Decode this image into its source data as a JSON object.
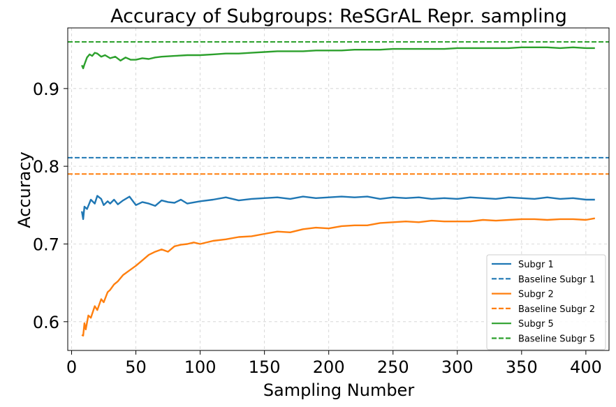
{
  "chart_data": {
    "type": "line",
    "title": "Accuracy of Subgroups: ReSGrAL Repr. sampling",
    "xlabel": "Sampling Number",
    "ylabel": "Accuracy",
    "xlim": [
      -3,
      418
    ],
    "ylim": [
      0.563,
      0.978
    ],
    "xticks": [
      0,
      50,
      100,
      150,
      200,
      250,
      300,
      350,
      400
    ],
    "yticks": [
      0.6,
      0.7,
      0.8,
      0.9
    ],
    "ytick_labels": [
      "0.6",
      "0.7",
      "0.8",
      "0.9"
    ],
    "grid": true,
    "legend_position": "bottom-right",
    "series": [
      {
        "name": "Subgr 1",
        "color": "#1f77b4",
        "style": "solid",
        "x": [
          8,
          9,
          10,
          12,
          15,
          18,
          20,
          23,
          25,
          28,
          30,
          33,
          36,
          40,
          45,
          50,
          55,
          60,
          65,
          70,
          75,
          80,
          85,
          90,
          100,
          110,
          120,
          130,
          140,
          150,
          160,
          170,
          180,
          190,
          200,
          210,
          220,
          230,
          240,
          250,
          260,
          270,
          280,
          290,
          300,
          310,
          320,
          330,
          340,
          350,
          360,
          370,
          380,
          390,
          400,
          407
        ],
        "y": [
          0.742,
          0.732,
          0.748,
          0.745,
          0.757,
          0.752,
          0.762,
          0.758,
          0.75,
          0.755,
          0.752,
          0.757,
          0.751,
          0.756,
          0.761,
          0.75,
          0.754,
          0.752,
          0.749,
          0.756,
          0.754,
          0.753,
          0.757,
          0.752,
          0.755,
          0.757,
          0.76,
          0.756,
          0.758,
          0.759,
          0.76,
          0.758,
          0.761,
          0.759,
          0.76,
          0.761,
          0.76,
          0.761,
          0.758,
          0.76,
          0.759,
          0.76,
          0.758,
          0.759,
          0.758,
          0.76,
          0.759,
          0.758,
          0.76,
          0.759,
          0.758,
          0.76,
          0.758,
          0.759,
          0.757,
          0.757
        ]
      },
      {
        "name": "Baseline Subgr 1",
        "color": "#1f77b4",
        "style": "dashed",
        "value": 0.811
      },
      {
        "name": "Subgr 2",
        "color": "#ff7f0e",
        "style": "solid",
        "x": [
          8,
          9,
          10,
          11,
          13,
          15,
          18,
          20,
          23,
          25,
          28,
          30,
          33,
          36,
          40,
          45,
          50,
          55,
          60,
          65,
          70,
          75,
          80,
          85,
          90,
          95,
          100,
          110,
          120,
          130,
          140,
          150,
          160,
          170,
          180,
          190,
          200,
          210,
          220,
          230,
          240,
          250,
          260,
          270,
          280,
          290,
          300,
          310,
          320,
          330,
          340,
          350,
          360,
          370,
          380,
          390,
          400,
          407
        ],
        "y": [
          0.583,
          0.582,
          0.598,
          0.59,
          0.608,
          0.605,
          0.62,
          0.615,
          0.629,
          0.625,
          0.638,
          0.641,
          0.648,
          0.652,
          0.66,
          0.666,
          0.672,
          0.679,
          0.686,
          0.69,
          0.693,
          0.69,
          0.697,
          0.699,
          0.7,
          0.702,
          0.7,
          0.704,
          0.706,
          0.709,
          0.71,
          0.713,
          0.716,
          0.715,
          0.719,
          0.721,
          0.72,
          0.723,
          0.724,
          0.724,
          0.727,
          0.728,
          0.729,
          0.728,
          0.73,
          0.729,
          0.729,
          0.729,
          0.731,
          0.73,
          0.731,
          0.732,
          0.732,
          0.731,
          0.732,
          0.732,
          0.731,
          0.733
        ]
      },
      {
        "name": "Baseline Subgr 2",
        "color": "#ff7f0e",
        "style": "dashed",
        "value": 0.79
      },
      {
        "name": "Subgr 5",
        "color": "#2ca02c",
        "style": "solid",
        "x": [
          8,
          9,
          10,
          12,
          14,
          16,
          18,
          20,
          23,
          26,
          30,
          34,
          38,
          42,
          46,
          50,
          55,
          60,
          65,
          70,
          80,
          90,
          100,
          110,
          120,
          130,
          140,
          150,
          160,
          170,
          180,
          190,
          200,
          210,
          220,
          230,
          240,
          250,
          260,
          270,
          280,
          290,
          300,
          310,
          320,
          330,
          340,
          350,
          360,
          370,
          380,
          390,
          400,
          407
        ],
        "y": [
          0.93,
          0.926,
          0.931,
          0.94,
          0.944,
          0.942,
          0.946,
          0.945,
          0.941,
          0.943,
          0.939,
          0.941,
          0.936,
          0.94,
          0.937,
          0.937,
          0.939,
          0.938,
          0.94,
          0.941,
          0.942,
          0.943,
          0.943,
          0.944,
          0.945,
          0.945,
          0.946,
          0.947,
          0.948,
          0.948,
          0.948,
          0.949,
          0.949,
          0.949,
          0.95,
          0.95,
          0.95,
          0.951,
          0.951,
          0.951,
          0.951,
          0.951,
          0.952,
          0.952,
          0.952,
          0.952,
          0.952,
          0.953,
          0.953,
          0.953,
          0.952,
          0.953,
          0.952,
          0.952
        ]
      },
      {
        "name": "Baseline Subgr 5",
        "color": "#2ca02c",
        "style": "dashed",
        "value": 0.96
      }
    ]
  }
}
